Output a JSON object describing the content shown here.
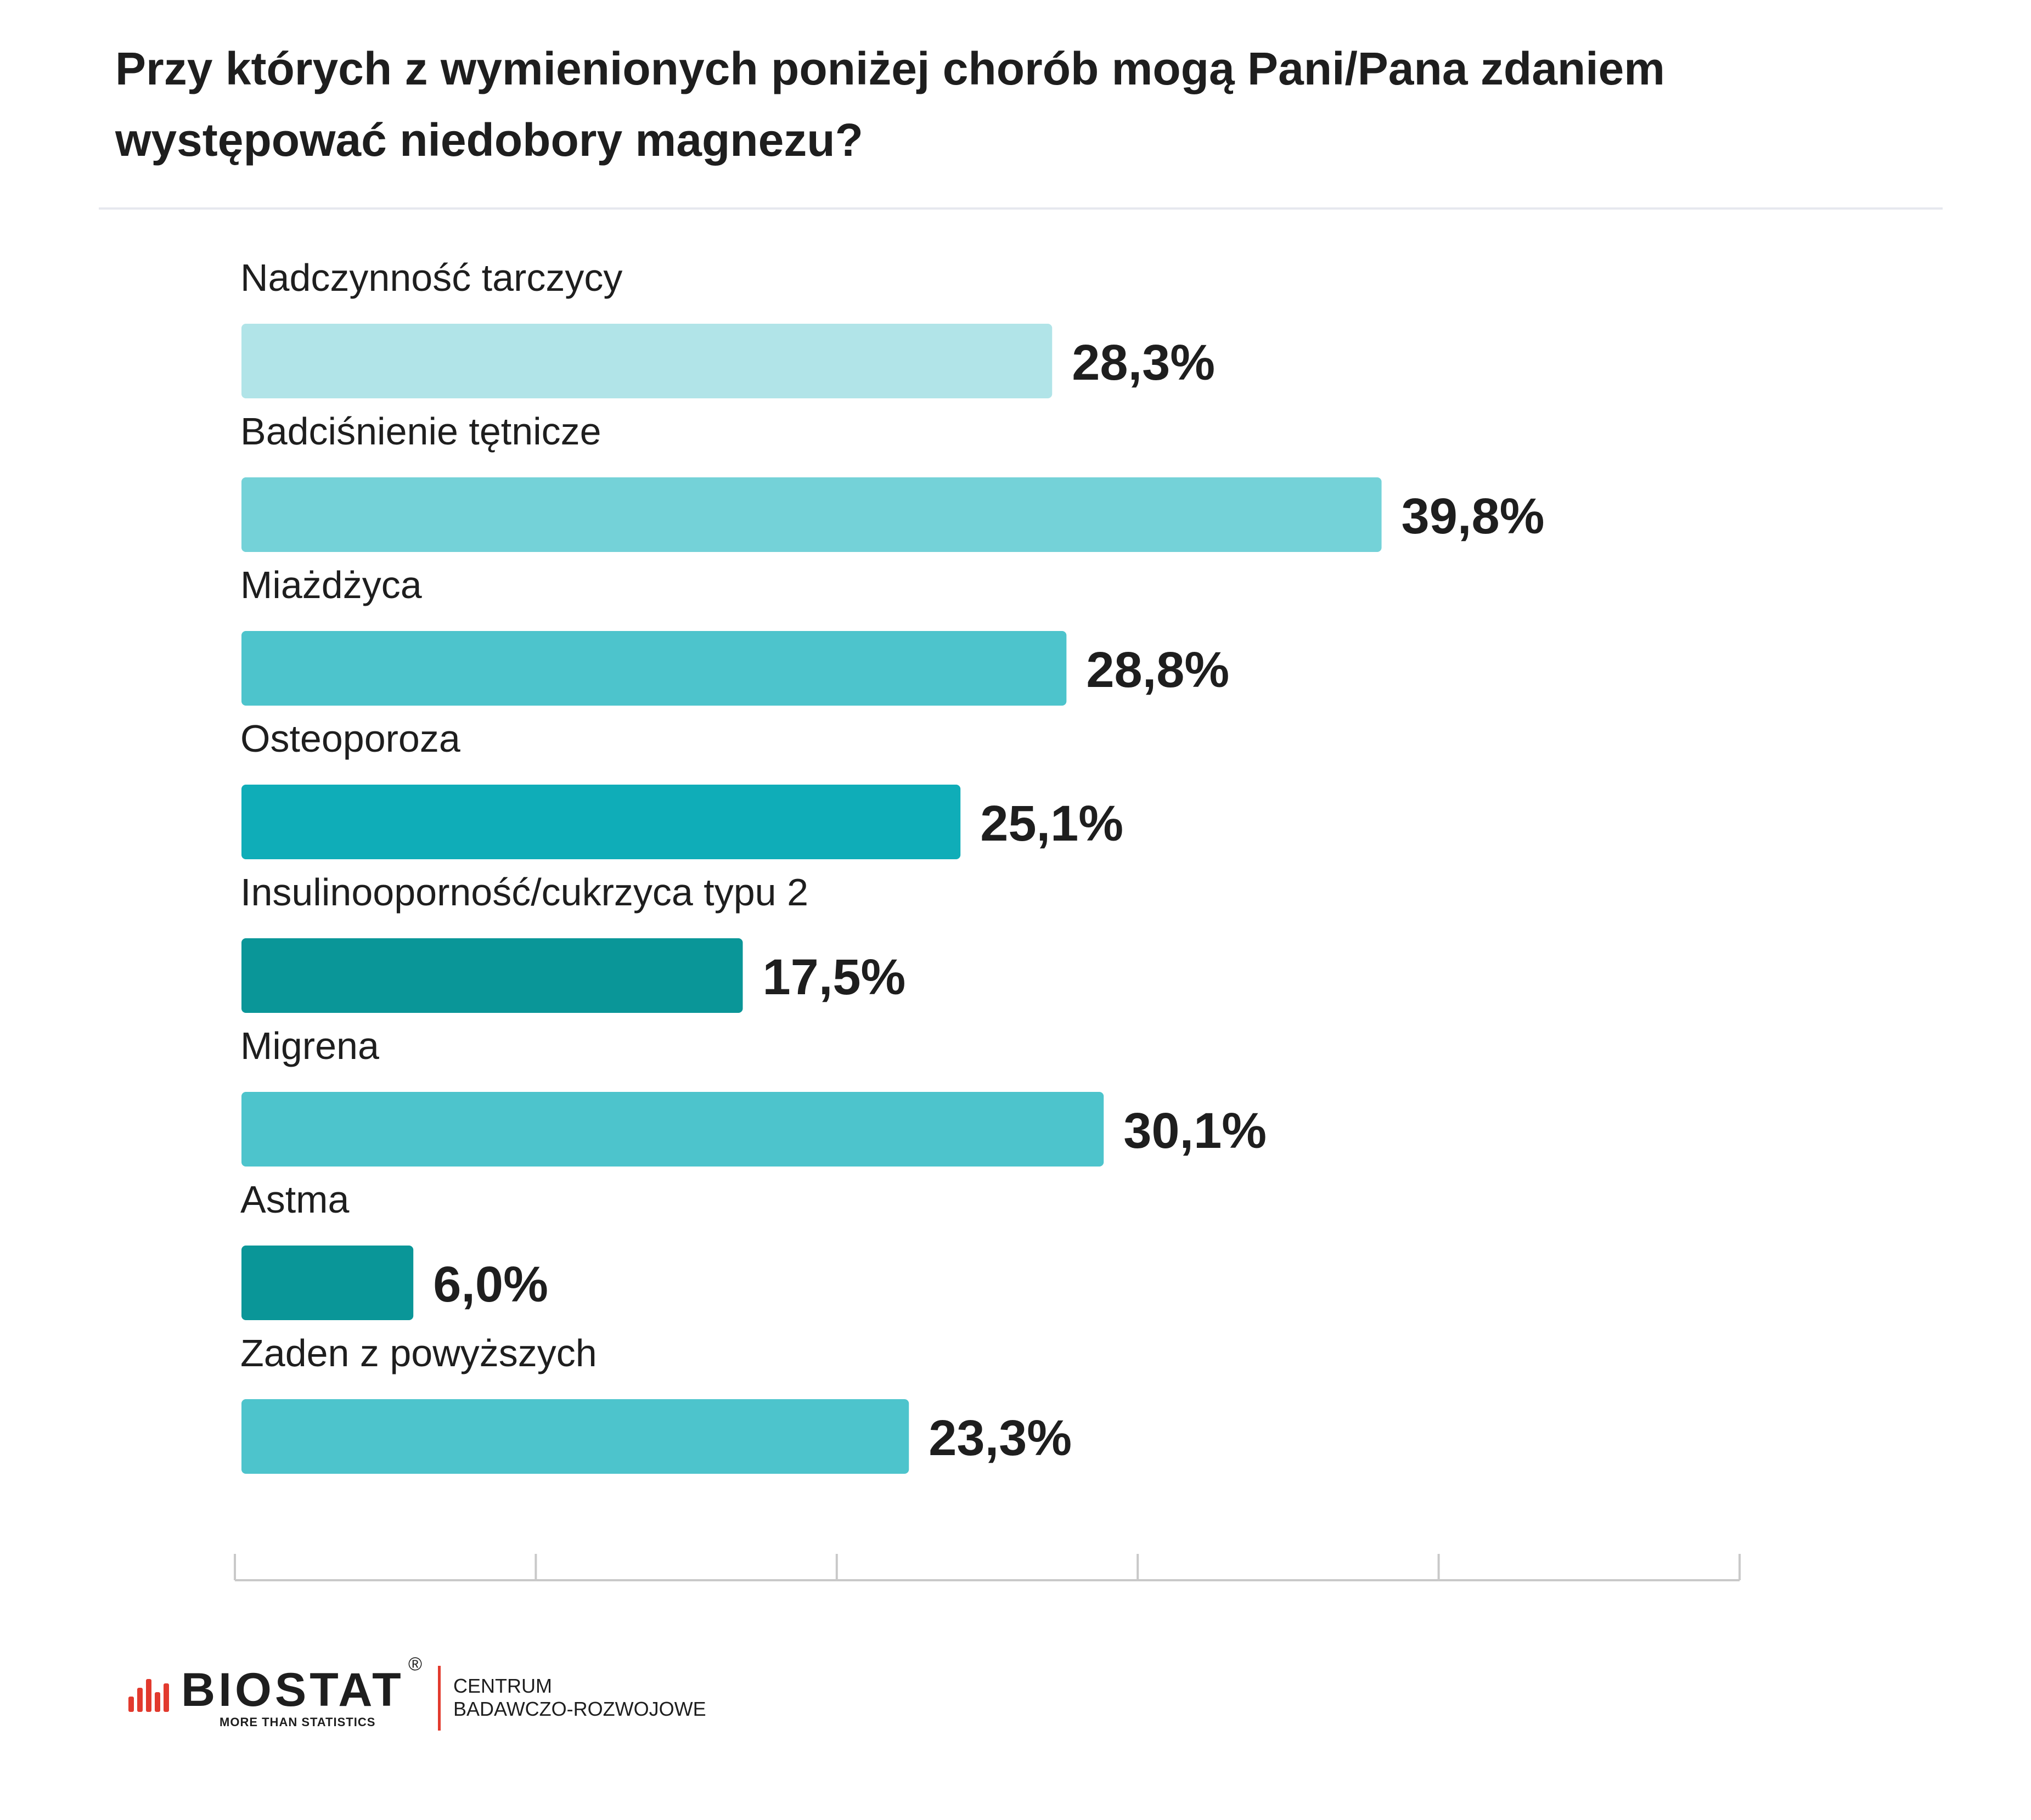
{
  "chart_data": {
    "type": "bar",
    "orientation": "horizontal",
    "title": "Przy których z wymienionych poniżej chorób mogą Pani/Pana zdaniem występować niedobory magnezu?",
    "categories": [
      "Nadczynność tarczycy",
      "Badciśnienie tętnicze",
      "Miażdżyca",
      "Osteoporoza",
      "Insulinooporność/cukrzyca typu 2",
      "Migrena",
      "Astma",
      "Zaden z powyższych"
    ],
    "values": [
      28.3,
      39.8,
      28.8,
      25.1,
      17.5,
      30.1,
      6.0,
      23.3
    ],
    "value_labels": [
      "28,3%",
      "39,8%",
      "28,8%",
      "25,1%",
      "17,5%",
      "30,1%",
      "6,0%",
      "23,3%"
    ],
    "colors": [
      "#b1e4e8",
      "#74d2d8",
      "#4dc4cc",
      "#0fadb8",
      "#0a9698",
      "#4dc4cc",
      "#0a9698",
      "#4dc4cc"
    ],
    "xlim": [
      0,
      52
    ],
    "xlabel": "",
    "ylabel": "",
    "grid": false,
    "legend": "none",
    "unit": "%"
  },
  "footer": {
    "brand": "BIOSTAT",
    "registered_mark": "®",
    "tagline": "MORE THAN STATISTICS",
    "center_line1": "CENTRUM",
    "center_line2": "BADAWCZO-ROZWOJOWE",
    "accent_color": "#e23a2e"
  }
}
